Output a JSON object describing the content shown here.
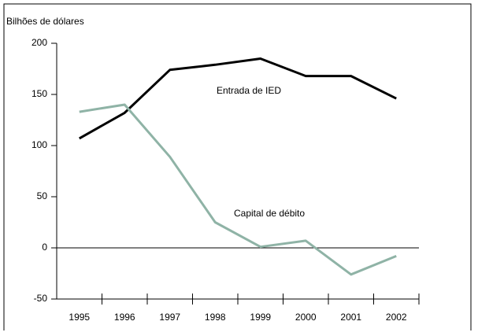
{
  "chart_data": {
    "type": "line",
    "y_label": "Bilhões de dólares",
    "categories": [
      "1995",
      "1996",
      "1997",
      "1998",
      "1999",
      "2000",
      "2001",
      "2002"
    ],
    "series": [
      {
        "name": "Entrada de IED",
        "color": "#000000",
        "values": [
          107,
          132,
          174,
          179,
          185,
          168,
          168,
          146
        ]
      },
      {
        "name": "Capital de débito",
        "color": "#8fb3a6",
        "values": [
          133,
          140,
          89,
          25,
          1,
          7,
          -26,
          -8
        ]
      }
    ],
    "ylim": [
      -50,
      200
    ],
    "yticks": [
      -50,
      0,
      50,
      100,
      150,
      200
    ]
  }
}
